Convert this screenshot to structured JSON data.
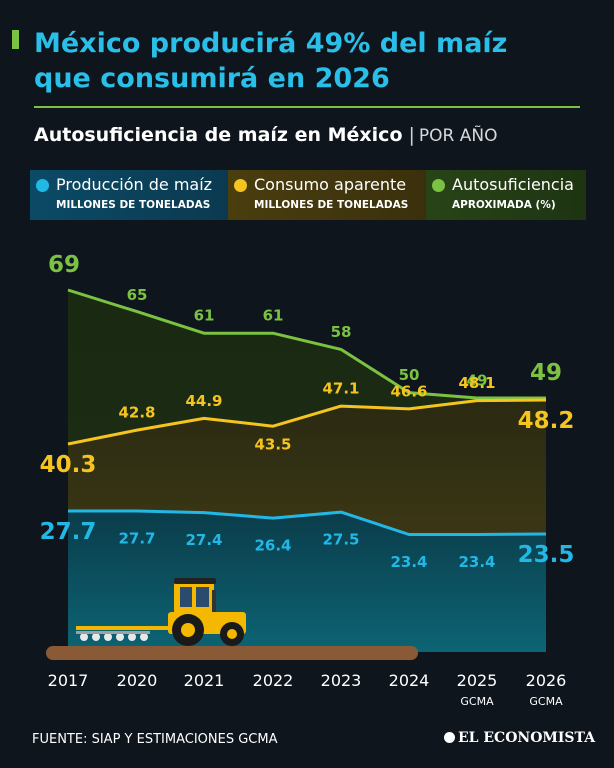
{
  "header": {
    "title_line1": "México producirá 49% del maíz",
    "title_line2": "que consumirá en 2026",
    "subtitle_main": "Autosuficiencia de maíz en México",
    "subtitle_sep": "|",
    "subtitle_period": "POR AÑO"
  },
  "footer": {
    "source": "FUENTE: SIAP Y ESTIMACIONES GCMA",
    "brand": "EL ECONOMISTA"
  },
  "chart_data": {
    "type": "line",
    "x": [
      "2017",
      "2020",
      "2021",
      "2022",
      "2023",
      "2024",
      "2025",
      "2026"
    ],
    "x_sublabels": [
      "",
      "",
      "",
      "",
      "",
      "",
      "GCMA",
      "GCMA"
    ],
    "series": [
      {
        "key": "autosuficiencia",
        "name": "Autosuficiencia",
        "unit": "APROXIMADA (%)",
        "color": "#7cc242",
        "values": [
          69,
          65,
          61,
          61,
          58,
          50,
          49,
          49
        ]
      },
      {
        "key": "consumo",
        "name": "Consumo aparente",
        "unit": "MILLONES DE TONELADAS",
        "color": "#f5c41e",
        "values": [
          40.3,
          42.8,
          44.9,
          43.5,
          47.1,
          46.6,
          48.1,
          48.2
        ]
      },
      {
        "key": "produccion",
        "name": "Producción de maíz",
        "unit": "MILLONES DE TONELADAS",
        "color": "#22b8e6",
        "values": [
          27.7,
          27.7,
          27.4,
          26.4,
          27.5,
          23.4,
          23.4,
          23.5
        ]
      }
    ],
    "colors": {
      "background": "#0e151d",
      "ground": "#8a5a36",
      "tractor": "#f5b800"
    }
  }
}
